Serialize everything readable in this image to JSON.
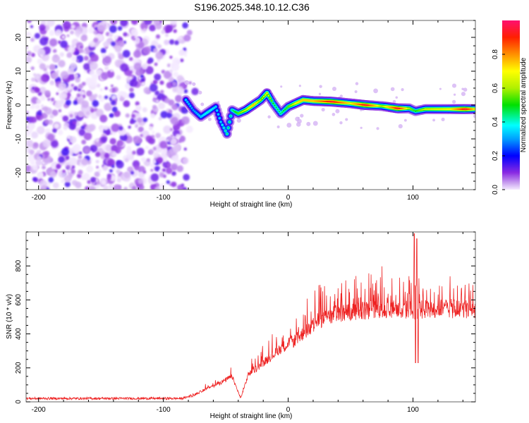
{
  "title": "S196.2025.348.10.12.C36",
  "chart_data": [
    {
      "type": "heatmap",
      "name": "spectrogram",
      "xlabel": "Height of straight line (km)",
      "ylabel": "Frequency (Hz)",
      "xlim": [
        -210,
        150
      ],
      "ylim": [
        -25,
        25
      ],
      "xticks": [
        -200,
        -100,
        0,
        100
      ],
      "xtick_labels": [
        "-200",
        "-100",
        "0",
        "100"
      ],
      "yticks": [
        -20,
        -10,
        0,
        10,
        20
      ],
      "ytick_labels": [
        "-20",
        "-10",
        "0",
        "10",
        "20"
      ],
      "colorbar": {
        "label": "Normalized spectral amplitude",
        "range": [
          0,
          1
        ],
        "ticks": [
          0.0,
          0.2,
          0.4,
          0.6,
          0.8
        ],
        "tick_labels": [
          "0.0",
          "0.2",
          "0.4",
          "0.6",
          "0.8"
        ],
        "colormap": [
          "#f0e0ff",
          "#c9a0f0",
          "#8a2be2",
          "#0000ff",
          "#00bfff",
          "#00ffff",
          "#00e000",
          "#b0f000",
          "#ffff00",
          "#ffa000",
          "#ff2000",
          "#ff1070"
        ]
      },
      "noise_region_x": [
        -210,
        -82
      ],
      "ridge": [
        {
          "x": -82,
          "f": 1.5,
          "a": 0.35
        },
        {
          "x": -76,
          "f": -1.5,
          "a": 0.3
        },
        {
          "x": -70,
          "f": -3.5,
          "a": 0.35
        },
        {
          "x": -64,
          "f": -2,
          "a": 0.4
        },
        {
          "x": -58,
          "f": -0.5,
          "a": 0.35
        },
        {
          "x": -54,
          "f": -5,
          "a": 0.35
        },
        {
          "x": -49,
          "f": -8.5,
          "a": 0.45
        },
        {
          "x": -45,
          "f": -1.5,
          "a": 0.45
        },
        {
          "x": -40,
          "f": -2.5,
          "a": 0.55
        },
        {
          "x": -34,
          "f": -1.5,
          "a": 0.65
        },
        {
          "x": -28,
          "f": 0,
          "a": 0.75
        },
        {
          "x": -22,
          "f": 1.5,
          "a": 0.6
        },
        {
          "x": -17,
          "f": 3.5,
          "a": 0.7
        },
        {
          "x": -12,
          "f": 0.5,
          "a": 0.5
        },
        {
          "x": -6,
          "f": -2.5,
          "a": 0.45
        },
        {
          "x": 0,
          "f": -0.5,
          "a": 0.55
        },
        {
          "x": 6,
          "f": 0.5,
          "a": 0.7
        },
        {
          "x": 12,
          "f": 1.5,
          "a": 0.75
        },
        {
          "x": 20,
          "f": 1.2,
          "a": 0.75
        },
        {
          "x": 35,
          "f": 1.0,
          "a": 0.95
        },
        {
          "x": 50,
          "f": 0.5,
          "a": 0.7
        },
        {
          "x": 62,
          "f": 0.0,
          "a": 0.95
        },
        {
          "x": 75,
          "f": -0.3,
          "a": 0.6
        },
        {
          "x": 88,
          "f": -1.0,
          "a": 0.95
        },
        {
          "x": 97,
          "f": -1.0,
          "a": 0.6
        },
        {
          "x": 102,
          "f": -1.8,
          "a": 0.5
        },
        {
          "x": 110,
          "f": -1.2,
          "a": 0.65
        },
        {
          "x": 130,
          "f": -1.2,
          "a": 0.7
        },
        {
          "x": 142,
          "f": -1.2,
          "a": 0.95
        },
        {
          "x": 150,
          "f": -1.2,
          "a": 0.7
        }
      ]
    },
    {
      "type": "line",
      "name": "snr",
      "xlabel": "Height of straight line (km)",
      "ylabel": "SNR (10 * v/v)",
      "xlim": [
        -210,
        150
      ],
      "ylim": [
        0,
        1000
      ],
      "xticks": [
        -200,
        -100,
        0,
        100
      ],
      "xtick_labels": [
        "-200",
        "-100",
        "0",
        "100"
      ],
      "yticks": [
        0,
        200,
        400,
        600,
        800
      ],
      "ytick_labels": [
        "0",
        "200",
        "400",
        "600",
        "800"
      ],
      "color": "#ee2222",
      "envelope": [
        {
          "x": -210,
          "y": 20
        },
        {
          "x": -85,
          "y": 20
        },
        {
          "x": -75,
          "y": 40
        },
        {
          "x": -65,
          "y": 80
        },
        {
          "x": -55,
          "y": 110
        },
        {
          "x": -45,
          "y": 150
        },
        {
          "x": -38,
          "y": 20
        },
        {
          "x": -32,
          "y": 160
        },
        {
          "x": -25,
          "y": 200
        },
        {
          "x": -15,
          "y": 260
        },
        {
          "x": -5,
          "y": 320
        },
        {
          "x": 5,
          "y": 360
        },
        {
          "x": 15,
          "y": 420
        },
        {
          "x": 25,
          "y": 480
        },
        {
          "x": 40,
          "y": 520
        },
        {
          "x": 60,
          "y": 540
        },
        {
          "x": 80,
          "y": 545
        },
        {
          "x": 100,
          "y": 540
        },
        {
          "x": 120,
          "y": 550
        },
        {
          "x": 150,
          "y": 545
        }
      ],
      "spikes": [
        {
          "x": 101,
          "y": 990
        },
        {
          "x": 102,
          "y": 230
        },
        {
          "x": 103,
          "y": 960
        },
        {
          "x": 104,
          "y": 230
        }
      ]
    }
  ]
}
